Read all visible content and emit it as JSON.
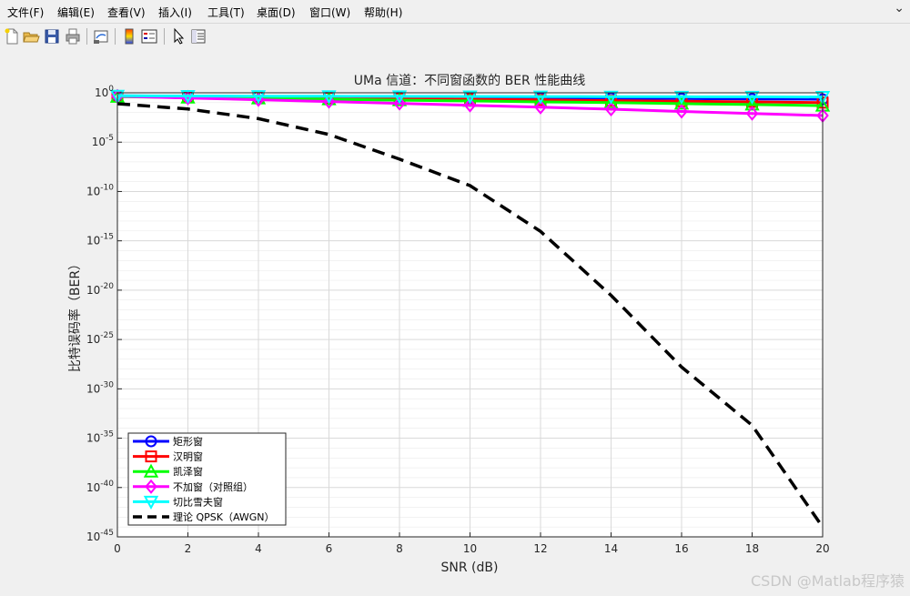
{
  "menu": {
    "items": [
      "文件(F)",
      "编辑(E)",
      "查看(V)",
      "插入(I)",
      "工具(T)",
      "桌面(D)",
      "窗口(W)",
      "帮助(H)"
    ],
    "close_glyph": "⌄"
  },
  "toolbar": {
    "icons": [
      "new-file-icon",
      "open-folder-icon",
      "save-icon",
      "print-icon",
      "link-plot-icon",
      "colorbar-icon",
      "legend-icon",
      "pointer-icon",
      "property-inspector-icon"
    ]
  },
  "watermark": "CSDN @Matlab程序猿",
  "chart_data": {
    "type": "line",
    "title": "UMa 信道：不同窗函数的 BER 性能曲线",
    "xlabel": "SNR (dB)",
    "ylabel": "比特误码率（BER）",
    "xlim": [
      0,
      20
    ],
    "ylim_exponent": [
      -45,
      0
    ],
    "yscale": "log",
    "grid": true,
    "x_ticks": [
      0,
      2,
      4,
      6,
      8,
      10,
      12,
      14,
      16,
      18,
      20
    ],
    "y_tick_exponents": [
      0,
      -5,
      -10,
      -15,
      -20,
      -25,
      -30,
      -35,
      -40,
      -45
    ],
    "y_tick_base": "10",
    "legend_position": "bottom-left",
    "x": [
      0,
      2,
      4,
      6,
      8,
      10,
      12,
      14,
      16,
      18,
      20
    ],
    "series": [
      {
        "name": "矩形窗",
        "color": "#0000ff",
        "marker": "circle",
        "style": "solid",
        "values": [
          0.5,
          0.46,
          0.42,
          0.39,
          0.36,
          0.33,
          0.3,
          0.28,
          0.26,
          0.24,
          0.22
        ]
      },
      {
        "name": "汉明窗",
        "color": "#ff0000",
        "marker": "square",
        "style": "solid",
        "values": [
          0.45,
          0.4,
          0.35,
          0.3,
          0.26,
          0.22,
          0.19,
          0.16,
          0.14,
          0.12,
          0.1
        ]
      },
      {
        "name": "凯泽窗",
        "color": "#00ff00",
        "marker": "triangle-up",
        "style": "solid",
        "values": [
          0.4,
          0.33,
          0.27,
          0.22,
          0.18,
          0.15,
          0.12,
          0.1,
          0.08,
          0.065,
          0.05
        ]
      },
      {
        "name": "不加窗（对照组）",
        "color": "#ff00ff",
        "marker": "diamond",
        "style": "solid",
        "values": [
          0.45,
          0.3,
          0.2,
          0.13,
          0.085,
          0.055,
          0.035,
          0.022,
          0.013,
          0.008,
          0.005
        ]
      },
      {
        "name": "切比雪夫窗",
        "color": "#00ffff",
        "marker": "triangle-down",
        "style": "solid",
        "values": [
          0.5,
          0.48,
          0.46,
          0.45,
          0.44,
          0.43,
          0.42,
          0.41,
          0.4,
          0.39,
          0.38
        ]
      },
      {
        "name": "理论 QPSK（AWGN）",
        "color": "#000000",
        "marker": "none",
        "style": "dashed",
        "values": [
          0.0786,
          0.0228,
          0.00241,
          6e-05,
          1.9e-07,
          3.9e-10,
          9e-15,
          3e-21,
          1.6e-28,
          2e-34,
          1e-44
        ]
      }
    ]
  }
}
